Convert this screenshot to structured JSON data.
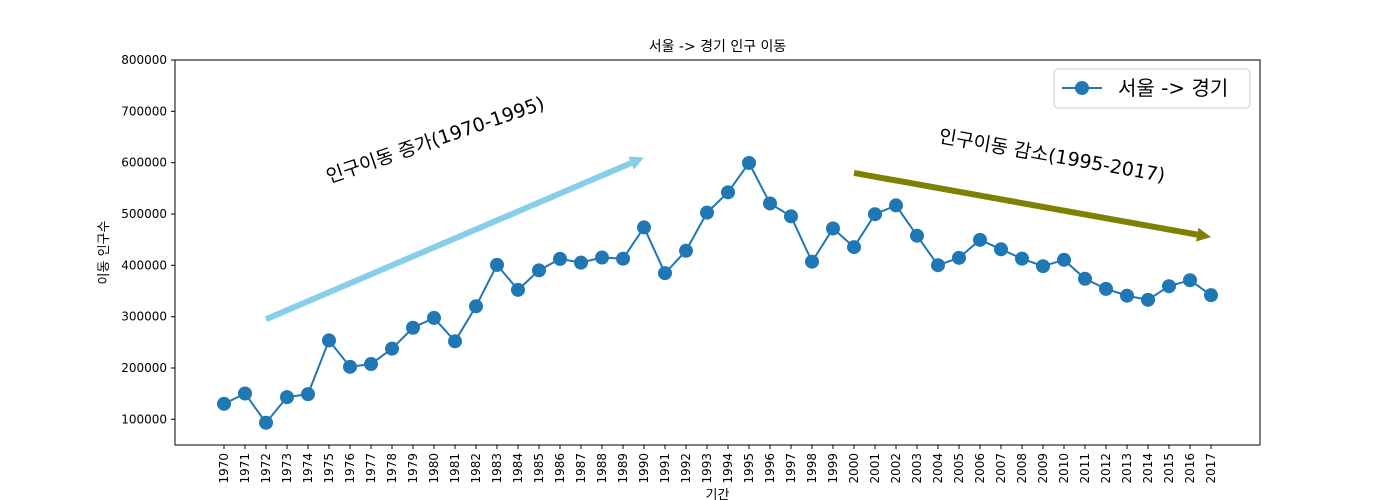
{
  "chart_data": {
    "type": "line",
    "title": "서울 -> 경기 인구 이동",
    "xlabel": "기간",
    "ylabel": "이동 인구수",
    "ylim": [
      50000,
      800000
    ],
    "yticks": [
      100000,
      200000,
      300000,
      400000,
      500000,
      600000,
      700000,
      800000
    ],
    "grid": false,
    "legend_position": "top-right",
    "categories": [
      "1970",
      "1971",
      "1972",
      "1973",
      "1974",
      "1975",
      "1976",
      "1977",
      "1978",
      "1979",
      "1980",
      "1981",
      "1982",
      "1983",
      "1984",
      "1985",
      "1986",
      "1987",
      "1988",
      "1989",
      "1990",
      "1991",
      "1992",
      "1993",
      "1994",
      "1995",
      "1996",
      "1997",
      "1998",
      "1999",
      "2000",
      "2001",
      "2002",
      "2003",
      "2004",
      "2005",
      "2006",
      "2007",
      "2008",
      "2009",
      "2010",
      "2011",
      "2012",
      "2013",
      "2014",
      "2015",
      "2016",
      "2017"
    ],
    "series": [
      {
        "name": "서울 -> 경기",
        "color": "#1f77b4",
        "marker": "circle",
        "values": [
          130149,
          150313,
          93333,
          143234,
          149045,
          253705,
          202276,
          207722,
          237684,
          278411,
          297539,
          252073,
          320174,
          400875,
          352238,
          390265,
          412535,
          405220,
          415174,
          412933,
          473889,
          384714,
          428344,
          502584,
          542204,
          599411,
          520566,
          495454,
          407050,
          471841,
          435573,
          499575,
          516765,
          457656,
          400206,
          414621,
          449632,
          431214,
          412993,
          398282,
          410735,
          373771,
          354135,
          340801,
          332785,
          359337,
          371025,
          341871
        ]
      }
    ],
    "annotations": [
      {
        "kind": "arrow",
        "from": [
          "1972",
          295000
        ],
        "to": [
          "1990",
          610000
        ],
        "color": "#87ceeb"
      },
      {
        "kind": "arrow",
        "from": [
          "2000",
          580000
        ],
        "to": [
          "2017",
          455000
        ],
        "color": "#808000"
      },
      {
        "kind": "text",
        "text": "인구이동 증가(1970-1995)",
        "at": [
          "1975",
          560000
        ],
        "rotation": 19
      },
      {
        "kind": "text",
        "text": "인구이동 감소(1995-2017)",
        "at": [
          "2004",
          640000
        ],
        "rotation": -10
      }
    ]
  }
}
